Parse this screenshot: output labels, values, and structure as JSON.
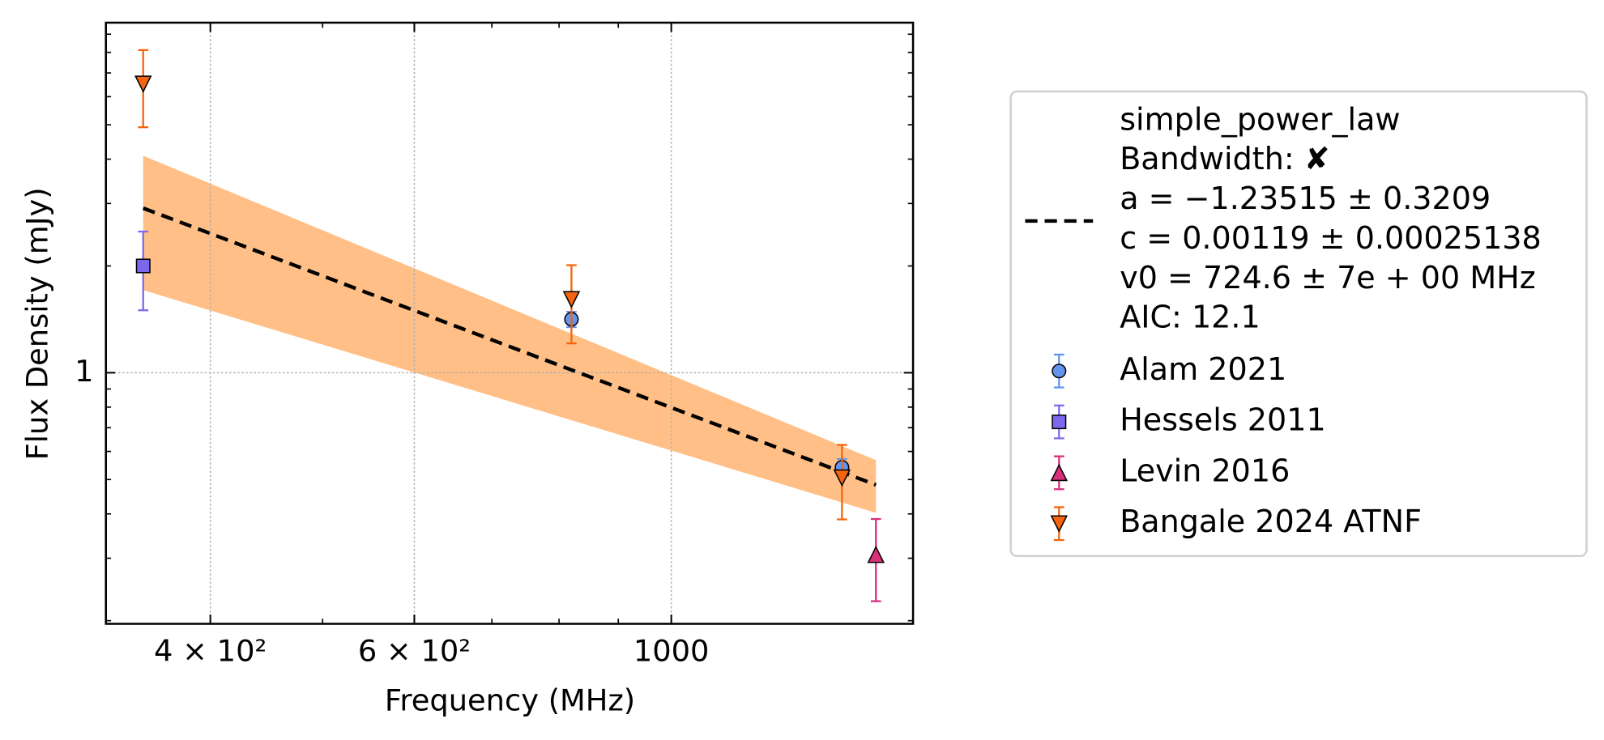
{
  "chart_data": {
    "type": "scatter",
    "xlabel": "Frequency (MHz)",
    "ylabel": "Flux Density (mJy)",
    "xscale": "log",
    "yscale": "log",
    "xlim": [
      325,
      1617
    ],
    "ylim": [
      0.196,
      9.7
    ],
    "xticks": [
      {
        "value": 400,
        "label": "4 × 10²"
      },
      {
        "value": 600,
        "label": "6 × 10²"
      },
      1000
    ],
    "xminorticks": [
      500,
      700,
      800,
      900
    ],
    "yticks": [
      1
    ],
    "yminorticks": [
      0.2,
      0.3,
      0.4,
      0.5,
      0.6,
      0.7,
      0.8,
      0.9,
      2,
      3,
      4,
      5,
      6,
      7,
      8,
      9
    ],
    "grid": true,
    "legend_loc": "outside right",
    "fit": {
      "name_lines": [
        "simple_power_law",
        "Bandwidth: ✘",
        "a = −1.23515 ± 0.3209",
        "c = 0.00119 ± 0.00025138",
        "v0 = 724.6 ± 7e + 00 MHz",
        "AIC: 12.1"
      ],
      "color": "#000000",
      "band_color": "#ffbf86",
      "x": [
        350,
        1502
      ],
      "values": [
        2.91,
        0.483
      ],
      "band_upper": [
        4.09,
        0.567
      ],
      "band_lower": [
        1.71,
        0.403
      ]
    },
    "series": [
      {
        "name": "Alam 2021",
        "color": "#6495ed",
        "marker": "circle",
        "x": [
          820,
          1404
        ],
        "values": [
          1.415,
          0.541
        ],
        "errors": [
          0.07,
          0.03
        ]
      },
      {
        "name": "Hessels 2011",
        "color": "#7b68ee",
        "marker": "square",
        "x": [
          350
        ],
        "values": [
          2.0
        ],
        "errors": [
          0.5
        ]
      },
      {
        "name": "Levin 2016",
        "color": "#d9307c",
        "marker": "triangle-up",
        "x": [
          1502
        ],
        "values": [
          0.307
        ],
        "errors": [
          0.08
        ]
      },
      {
        "name": "Bangale 2024 ATNF",
        "color": "#f5650f",
        "marker": "triangle-down",
        "x": [
          350,
          820,
          1404
        ],
        "values": [
          6.52,
          1.61,
          0.506
        ],
        "errors": [
          1.6,
          0.4,
          0.12
        ]
      }
    ]
  }
}
